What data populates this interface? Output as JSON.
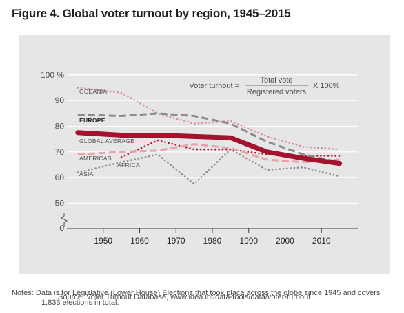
{
  "figure_title": "Figure 4. Global voter turnout by region, 1945–2015",
  "formula": {
    "lhs": "Voter turnout =",
    "numerator": "Total vote",
    "denominator": "Registered voters",
    "multiplier": "X 100%"
  },
  "source": "Source: Voter Turnout Database, www.idea.int/data-tools/data/voter-turnout",
  "notes": {
    "line1": "Notes: Data is for Legislative (Lower House) Elections that took place across the globe since 1945 and covers",
    "line2": "1,833 elections in total."
  },
  "colors": {
    "panel": "#e6e6e6",
    "grid": "#ffffff",
    "global_average": "#a3132d",
    "europe": "#8a8a8a",
    "oceania": "#d98a96",
    "americas": "#e8a0aa",
    "africa": "#b3152f",
    "asia": "#8a8a8a"
  },
  "chart_data": {
    "type": "line",
    "title": "Global voter turnout by region, 1945–2015",
    "y_tick_labels": [
      "0",
      "50",
      "60",
      "70",
      "80",
      "90",
      "100 %"
    ],
    "y_ticks": [
      0,
      50,
      60,
      70,
      80,
      90,
      100
    ],
    "y_break": true,
    "x_tick_labels": [
      "1950",
      "1960",
      "1970",
      "1980",
      "1990",
      "2000",
      "2010"
    ],
    "x_ticks": [
      1950,
      1960,
      1970,
      1980,
      1990,
      2000,
      2010
    ],
    "xlim": [
      1940,
      2020
    ],
    "grid": true,
    "series": [
      {
        "name": "OCEANIA",
        "style": "dotted",
        "color_key": "oceania",
        "x": [
          1943,
          1955,
          1965,
          1975,
          1985,
          1995,
          2005,
          2015
        ],
        "y": [
          95,
          93,
          85,
          81,
          82,
          76,
          72,
          71
        ]
      },
      {
        "name": "EUROPE",
        "style": "dashed",
        "color_key": "europe",
        "x": [
          1943,
          1955,
          1965,
          1975,
          1985,
          1995,
          2005,
          2015
        ],
        "y": [
          84.5,
          84,
          85,
          84,
          81,
          74,
          69,
          66
        ]
      },
      {
        "name": "GLOBAL AVERAGE",
        "style": "solid",
        "color_key": "global_average",
        "x": [
          1943,
          1955,
          1965,
          1975,
          1985,
          1995,
          2005,
          2015
        ],
        "y": [
          77.5,
          76.5,
          76.5,
          76,
          75.5,
          70,
          67.5,
          65.5
        ]
      },
      {
        "name": "AMERICAS",
        "style": "dashed",
        "color_key": "americas",
        "x": [
          1943,
          1955,
          1965,
          1975,
          1985,
          1995,
          2005,
          2015
        ],
        "y": [
          69,
          70,
          70.5,
          73,
          71.5,
          67,
          66,
          67
        ]
      },
      {
        "name": "AFRICA",
        "style": "dotted",
        "color_key": "africa",
        "x": [
          1955,
          1965,
          1975,
          1985,
          1995,
          2005,
          2015
        ],
        "y": [
          68,
          74.5,
          71,
          71,
          69,
          68.5,
          68.5
        ]
      },
      {
        "name": "ASIA",
        "style": "dotted",
        "color_key": "asia",
        "x": [
          1943,
          1955,
          1965,
          1975,
          1985,
          1995,
          2005,
          2015
        ],
        "y": [
          62,
          66,
          69,
          57.5,
          71,
          63,
          64,
          60.5
        ]
      }
    ]
  }
}
